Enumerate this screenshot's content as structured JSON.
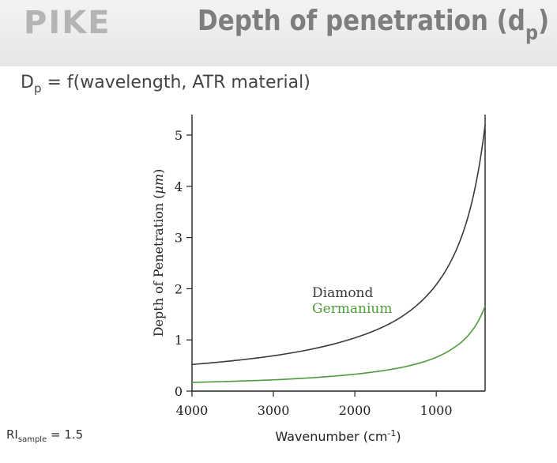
{
  "header": {
    "logo": "PIKE",
    "title_main": "Depth of penetration (d",
    "title_sub": "p",
    "title_close": ")"
  },
  "subtitle": {
    "prefix": "D",
    "sub": "p",
    "rest": " = f(wavelength, ATR material)"
  },
  "note": {
    "prefix": "RI",
    "sub": "sample",
    "rest": " = 1.5"
  },
  "colors": {
    "diamond": "#3a3a3a",
    "germanium": "#4e9a3c",
    "axis": "#222222"
  },
  "chart_data": {
    "type": "line",
    "ylabel_prefix": "Depth of Penetration (",
    "ylabel_unit": "μm",
    "ylabel_suffix": ")",
    "xlabel_prefix": "Wavenumber (cm",
    "xlabel_sup": "-1",
    "xlabel_suffix": ")",
    "xlim": [
      4000,
      400
    ],
    "ylim": [
      0,
      5.2
    ],
    "x_ticks": [
      4000,
      3000,
      2000,
      1000
    ],
    "y_ticks": [
      0,
      1,
      2,
      3,
      4,
      5
    ],
    "x_reversed": true,
    "legend_position": "center",
    "series": [
      {
        "name": "Diamond",
        "color": "#3a3a3a",
        "x": [
          4000,
          3000,
          2000,
          1500,
          1000,
          800,
          600,
          400
        ],
        "y": [
          0.52,
          0.69,
          1.04,
          1.38,
          2.08,
          2.6,
          3.46,
          5.2
        ]
      },
      {
        "name": "Germanium",
        "color": "#4e9a3c",
        "x": [
          4000,
          3000,
          2000,
          1500,
          1000,
          800,
          600,
          400
        ],
        "y": [
          0.17,
          0.22,
          0.33,
          0.44,
          0.66,
          0.83,
          1.1,
          1.66
        ]
      }
    ]
  }
}
